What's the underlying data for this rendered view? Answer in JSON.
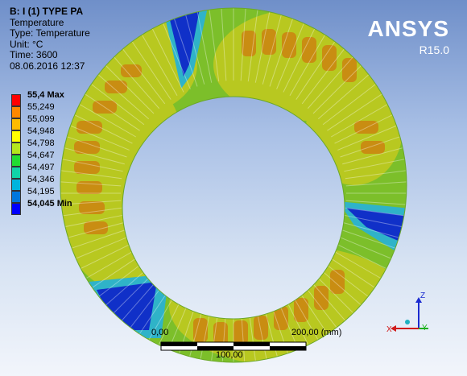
{
  "info": {
    "title": "B: I (1) TYPE PA",
    "result": "Temperature",
    "type": "Type: Temperature",
    "unit": "Unit: °C",
    "time": "Time: 3600",
    "date": "08.06.2016 12:37"
  },
  "legend": {
    "max_label": "55,4 Max",
    "min_label": "54,045 Min",
    "levels": [
      "55,249",
      "55,099",
      "54,948",
      "54,798",
      "54,647",
      "54,497",
      "54,346",
      "54,195"
    ],
    "colors": [
      "#ff0000",
      "#ff8800",
      "#ffbb00",
      "#ffff00",
      "#b5e61d",
      "#22dd33",
      "#11d3a8",
      "#00b4dd",
      "#0077dd",
      "#0000ff"
    ]
  },
  "logo": {
    "name": "ANSYS",
    "version": "R15.0"
  },
  "scale_bar": {
    "start": "0,00",
    "end": "200,00 (mm)",
    "mid": "100,00"
  },
  "triad": {
    "x": "X",
    "y": "Y",
    "z": "Z"
  },
  "ring_colors": {
    "outer": "#7cbf2a",
    "band": "#b8c820",
    "hot": "#c98d12",
    "cold": "#1030c8",
    "cyan": "#2fb3c8"
  }
}
